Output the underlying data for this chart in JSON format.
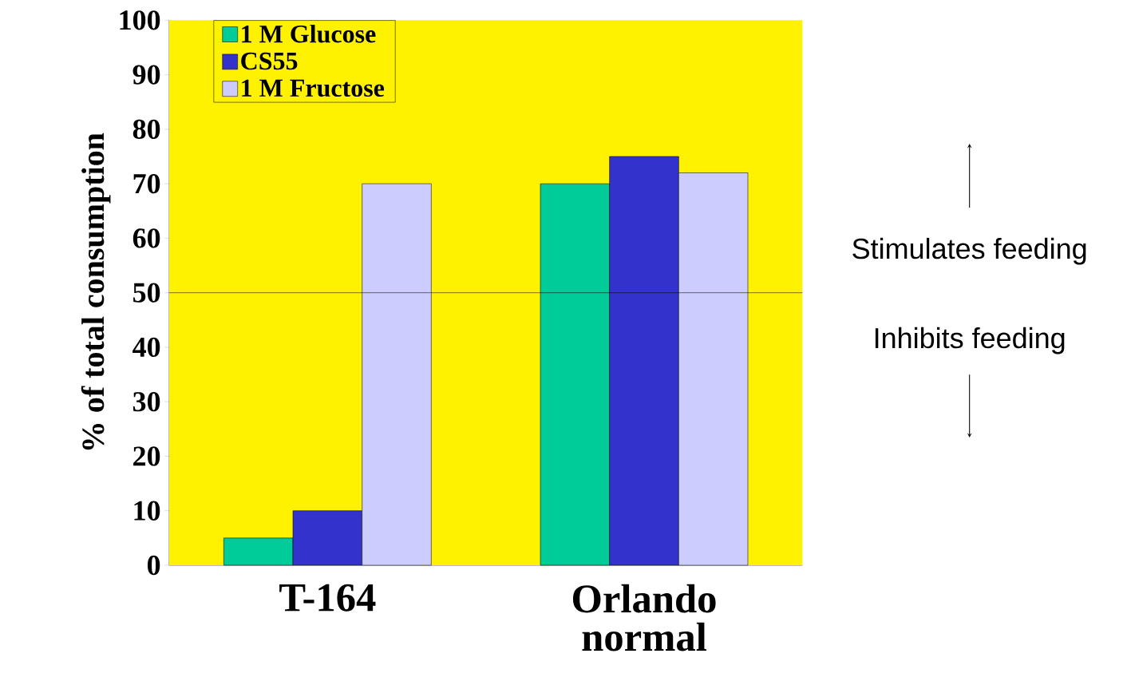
{
  "chart_data": {
    "type": "bar",
    "ylabel": "% of total consumption",
    "categories": [
      "T-164",
      "Orlando normal"
    ],
    "series": [
      {
        "name": "1 M Glucose",
        "color": "#00cc99",
        "values": [
          5,
          70
        ]
      },
      {
        "name": "CS55",
        "color": "#3333cc",
        "values": [
          10,
          75
        ]
      },
      {
        "name": "1 M Fructose",
        "color": "#ccccff",
        "values": [
          70,
          72
        ]
      }
    ],
    "ylim": [
      0,
      100
    ],
    "yticks": [
      0,
      10,
      20,
      30,
      40,
      50,
      60,
      70,
      80,
      90,
      100
    ],
    "ref_lines": [
      {
        "axis": "y",
        "value": 50,
        "color": "#000000"
      }
    ],
    "annotations": [
      "Stimulates feeding",
      "Inhibits feeding"
    ],
    "legend": "top left",
    "grid": false
  }
}
